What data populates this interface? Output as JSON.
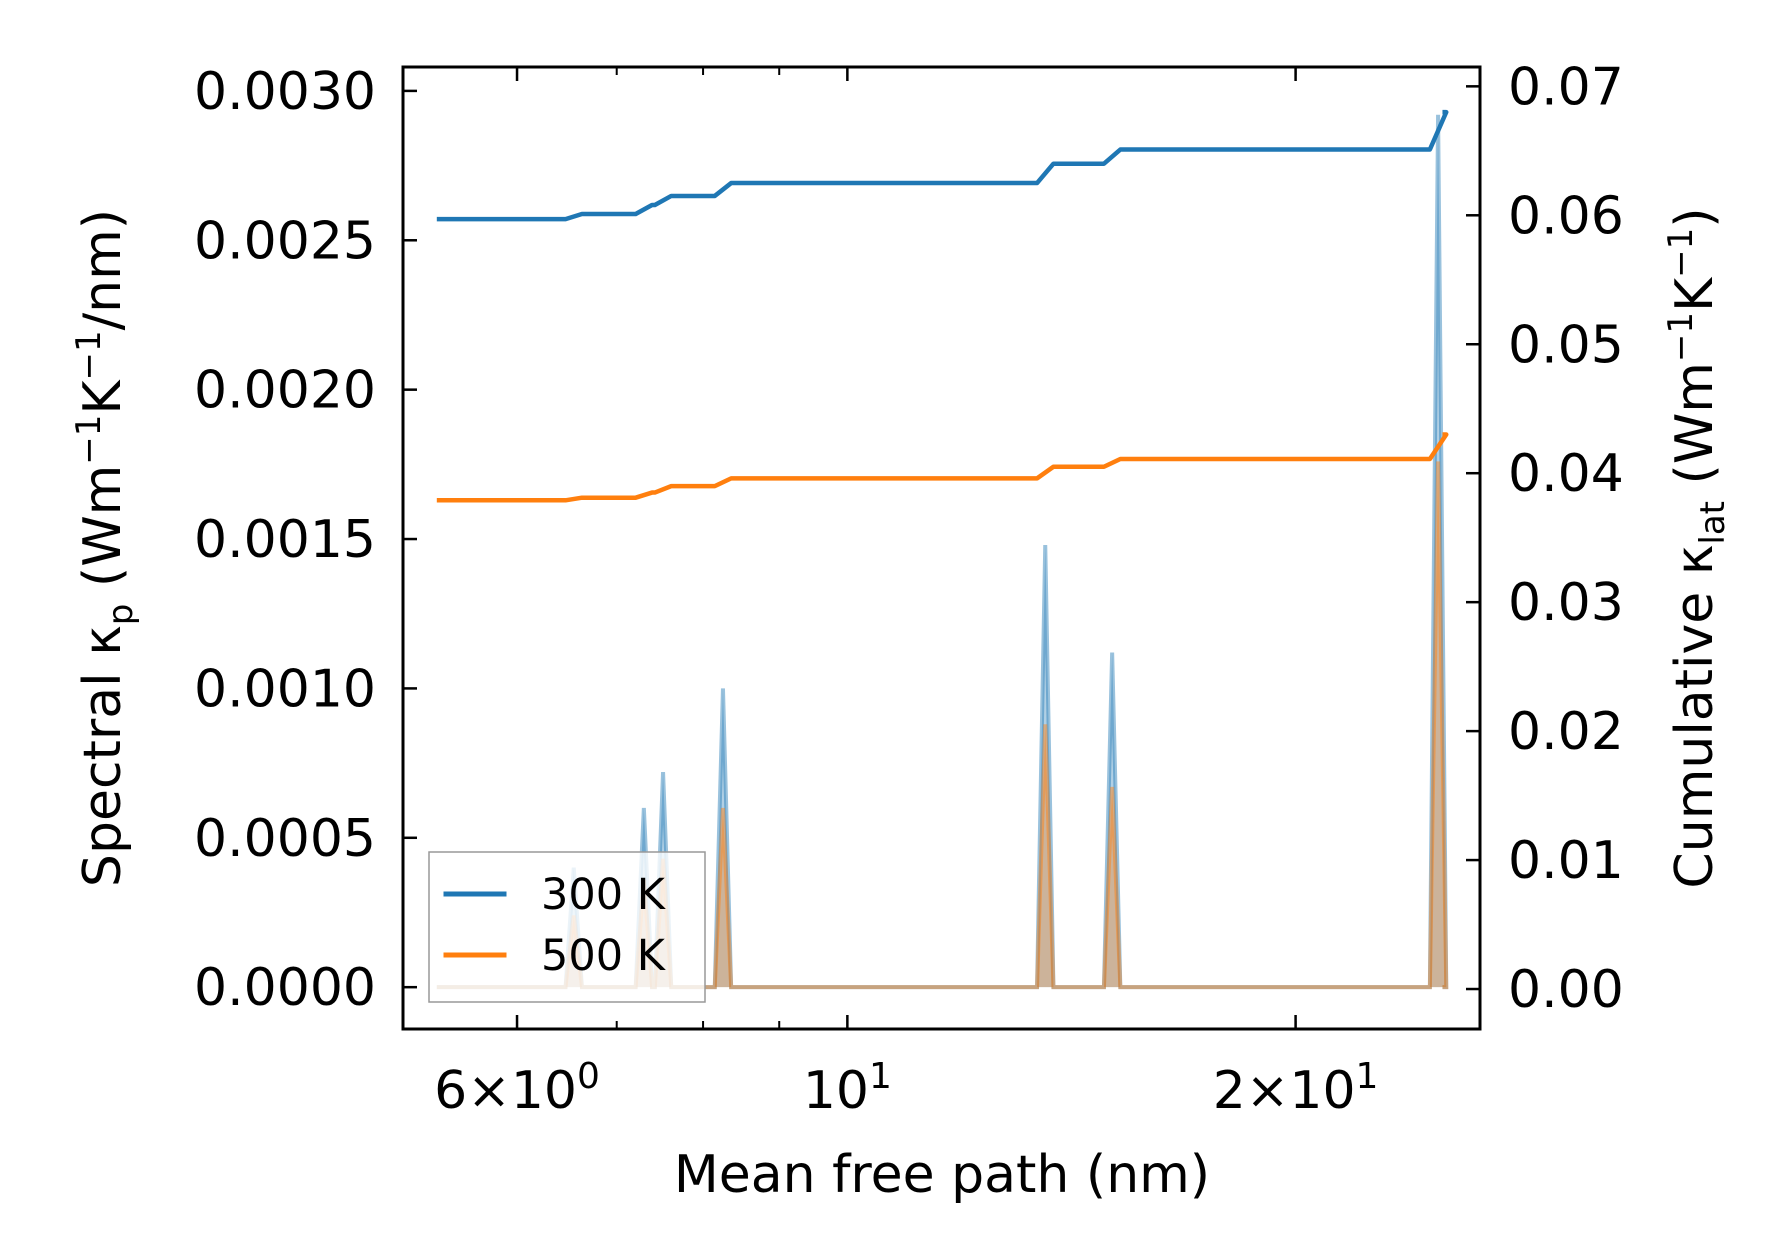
{
  "chart_data": {
    "type": "line",
    "xlabel": "Mean free path (nm)",
    "ylabel_left": {
      "prefix": "Spectral κ",
      "sub": "p",
      "unit_open": " (Wm",
      "sup1": "−1",
      "mid": "K",
      "sup2": "−1",
      "unit_close": "/nm)"
    },
    "ylabel_right": {
      "prefix": "Cumulative κ",
      "sub": "lat",
      "unit_open": " (Wm",
      "sup1": "−1",
      "mid": "K",
      "sup2": "−1",
      "unit_close": ")"
    },
    "x_scale": "log",
    "xlim": [
      5.03,
      26.6
    ],
    "ylim_left": [
      -0.00014,
      0.00308
    ],
    "ylim_right": [
      -0.0031,
      0.0715
    ],
    "x_tick_labels": [
      {
        "x": 6,
        "mantissa": "6",
        "times": "×",
        "base": "10",
        "exp": "0"
      },
      {
        "x": 10,
        "mantissa": "",
        "times": "",
        "base": "10",
        "exp": "1"
      },
      {
        "x": 20,
        "mantissa": "2",
        "times": "×",
        "base": "10",
        "exp": "1"
      }
    ],
    "x_minor_ticks": [
      6,
      7,
      8,
      9,
      20
    ],
    "y_left_ticks": [
      {
        "value": 0.0,
        "label": "0.0000"
      },
      {
        "value": 0.0005,
        "label": "0.0005"
      },
      {
        "value": 0.001,
        "label": "0.0010"
      },
      {
        "value": 0.0015,
        "label": "0.0015"
      },
      {
        "value": 0.002,
        "label": "0.0020"
      },
      {
        "value": 0.0025,
        "label": "0.0025"
      },
      {
        "value": 0.003,
        "label": "0.0030"
      }
    ],
    "y_right_ticks": [
      {
        "value": 0.0,
        "label": "0.00"
      },
      {
        "value": 0.01,
        "label": "0.01"
      },
      {
        "value": 0.02,
        "label": "0.02"
      },
      {
        "value": 0.03,
        "label": "0.03"
      },
      {
        "value": 0.04,
        "label": "0.04"
      },
      {
        "value": 0.05,
        "label": "0.05"
      },
      {
        "value": 0.06,
        "label": "0.06"
      },
      {
        "value": 0.07,
        "label": "0.07"
      }
    ],
    "legend": {
      "position": "lower-left"
    },
    "series": [
      {
        "name": "300 K",
        "color": "#1f77b4",
        "x_start": 5.3,
        "x_end": 25.1,
        "spectral_peaks": [
          {
            "x": 6.55,
            "value": 0.0004
          },
          {
            "x": 7.3,
            "value": 0.0006
          },
          {
            "x": 7.52,
            "value": 0.00072
          },
          {
            "x": 8.25,
            "value": 0.001
          },
          {
            "x": 13.58,
            "value": 0.00148
          },
          {
            "x": 15.06,
            "value": 0.00112
          },
          {
            "x": 24.93,
            "value": 0.00292
          }
        ],
        "cumulative_start": 0.0597,
        "cumulative_steps": [
          {
            "x": 6.55,
            "value": 0.0601
          },
          {
            "x": 7.3,
            "value": 0.0608
          },
          {
            "x": 7.52,
            "value": 0.0615
          },
          {
            "x": 8.25,
            "value": 0.0625
          },
          {
            "x": 13.58,
            "value": 0.064
          },
          {
            "x": 15.06,
            "value": 0.0651
          },
          {
            "x": 24.93,
            "value": 0.068
          }
        ]
      },
      {
        "name": "500 K",
        "color": "#ff7f0e",
        "x_start": 5.3,
        "x_end": 25.1,
        "spectral_peaks": [
          {
            "x": 6.55,
            "value": 0.00024
          },
          {
            "x": 7.3,
            "value": 0.00036
          },
          {
            "x": 7.52,
            "value": 0.00043
          },
          {
            "x": 8.25,
            "value": 0.0006
          },
          {
            "x": 13.58,
            "value": 0.00088
          },
          {
            "x": 15.06,
            "value": 0.00067
          },
          {
            "x": 24.93,
            "value": 0.00176
          }
        ],
        "cumulative_start": 0.0379,
        "cumulative_steps": [
          {
            "x": 6.55,
            "value": 0.0381
          },
          {
            "x": 7.3,
            "value": 0.0385
          },
          {
            "x": 7.52,
            "value": 0.039
          },
          {
            "x": 8.25,
            "value": 0.0396
          },
          {
            "x": 13.58,
            "value": 0.0405
          },
          {
            "x": 15.06,
            "value": 0.0411
          },
          {
            "x": 24.93,
            "value": 0.043
          }
        ]
      }
    ]
  }
}
